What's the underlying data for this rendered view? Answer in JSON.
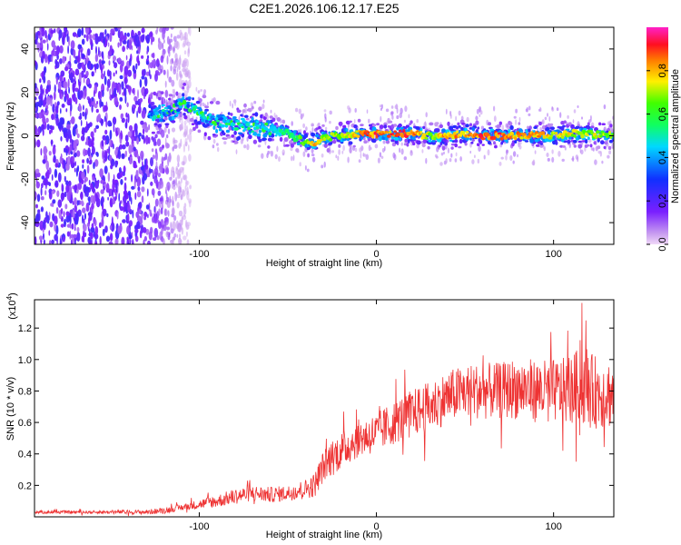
{
  "title": "C2E1.2026.106.12.17.E25",
  "colors": {
    "snr_line": "#ee3333",
    "spectrogram_low": "#8a2be2",
    "frame": "#000000"
  },
  "chart_data": [
    {
      "type": "heatmap",
      "name": "spectrogram",
      "xlabel": "Height of straight line (km)",
      "ylabel": "Frequency (Hz)",
      "xlim": [
        -193,
        134
      ],
      "ylim": [
        -50,
        50
      ],
      "xticks": [
        -100,
        0,
        100
      ],
      "xtick_labels": [
        "-100",
        "0",
        "100"
      ],
      "yticks": [
        -40,
        -20,
        0,
        20,
        40
      ],
      "ytick_labels": [
        "-40",
        "-20",
        "0",
        "20",
        "40"
      ],
      "colorbar": {
        "label": "Normalized spectral amplitude",
        "range": [
          0,
          1
        ],
        "ticks": [
          0.0,
          0.2,
          0.4,
          0.6,
          0.8
        ],
        "tick_labels": [
          "0.0",
          "0.2",
          "0.4",
          "0.6",
          "0.8"
        ],
        "colormap": "rainbow (magenta at 0 through blue, cyan, green, yellow, orange, red to magenta at 1)"
      },
      "ridge": {
        "description": "Dominant frequency ridge vs height",
        "x": [
          -125,
          -115,
          -108,
          -100,
          -90,
          -80,
          -70,
          -60,
          -50,
          -40,
          -35,
          -30,
          -20,
          -10,
          0,
          10,
          20,
          30,
          40,
          50,
          60,
          70,
          80,
          90,
          100,
          110,
          120,
          134
        ],
        "freq": [
          10,
          12,
          15,
          10,
          6,
          5,
          4,
          3,
          1,
          -3,
          -3,
          -1,
          0,
          1,
          1,
          1,
          1,
          0,
          0,
          1,
          0,
          0,
          0,
          0,
          0,
          1,
          1,
          0
        ],
        "amplitude": [
          0.35,
          0.45,
          0.55,
          0.45,
          0.45,
          0.45,
          0.5,
          0.5,
          0.55,
          0.7,
          0.85,
          0.7,
          0.75,
          0.85,
          0.9,
          0.9,
          0.9,
          0.75,
          0.85,
          0.85,
          0.9,
          0.9,
          0.85,
          0.85,
          0.8,
          0.75,
          0.75,
          0.7
        ]
      },
      "noise_region": {
        "description": "Broadband low-amplitude noise (normalized amplitude ~0.1-0.25) spanning all frequencies",
        "x_range": [
          -193,
          -105
        ]
      }
    },
    {
      "type": "line",
      "name": "snr",
      "xlabel": "Height of straight line (km)",
      "ylabel": "SNR (10 * v/v)",
      "y_multiplier": "(x10⁴)",
      "y_multiplier_base": "(x10",
      "y_multiplier_exp": "4",
      "y_multiplier_close": ")",
      "xlim": [
        -193,
        134
      ],
      "ylim": [
        0,
        1.38
      ],
      "xticks": [
        -100,
        0,
        100
      ],
      "xtick_labels": [
        "-100",
        "0",
        "100"
      ],
      "yticks": [
        0.2,
        0.4,
        0.6,
        0.8,
        1.0,
        1.2
      ],
      "ytick_labels": [
        "0.2",
        "0.4",
        "0.6",
        "0.8",
        "1.0",
        "1.2"
      ],
      "series": [
        {
          "name": "SNR",
          "x": [
            -193,
            -160,
            -130,
            -120,
            -110,
            -100,
            -90,
            -80,
            -70,
            -60,
            -50,
            -40,
            -35,
            -30,
            -25,
            -20,
            -10,
            0,
            10,
            20,
            30,
            40,
            50,
            60,
            70,
            80,
            90,
            100,
            110,
            115,
            120,
            134
          ],
          "y": [
            0.03,
            0.03,
            0.03,
            0.04,
            0.06,
            0.08,
            0.1,
            0.13,
            0.15,
            0.14,
            0.15,
            0.18,
            0.2,
            0.32,
            0.38,
            0.42,
            0.5,
            0.53,
            0.6,
            0.66,
            0.7,
            0.76,
            0.8,
            0.8,
            0.8,
            0.82,
            0.8,
            0.8,
            0.8,
            0.85,
            0.8,
            0.78
          ],
          "spread": [
            0.01,
            0.01,
            0.015,
            0.02,
            0.02,
            0.03,
            0.04,
            0.05,
            0.05,
            0.05,
            0.05,
            0.06,
            0.08,
            0.1,
            0.12,
            0.12,
            0.12,
            0.13,
            0.14,
            0.15,
            0.16,
            0.17,
            0.17,
            0.18,
            0.18,
            0.2,
            0.2,
            0.2,
            0.22,
            0.24,
            0.24,
            0.22
          ],
          "peak": {
            "x": 116,
            "y": 1.36
          }
        }
      ]
    }
  ]
}
